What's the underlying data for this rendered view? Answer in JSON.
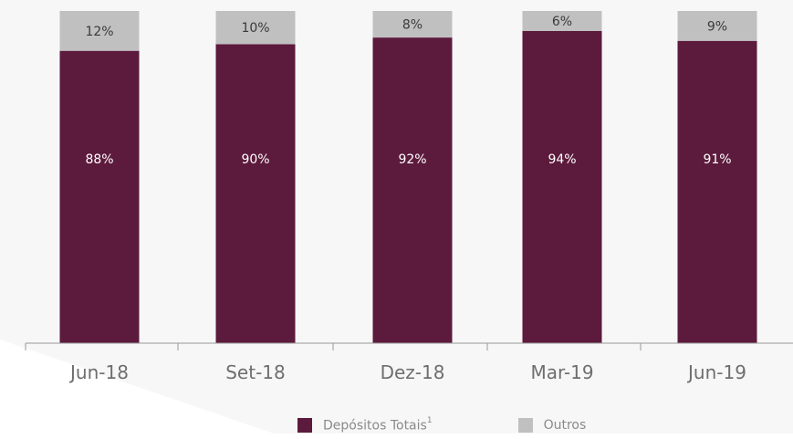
{
  "chart_data": {
    "type": "bar",
    "stacked": true,
    "categories": [
      "Jun-18",
      "Set-18",
      "Dez-18",
      "Mar-19",
      "Jun-19"
    ],
    "series": [
      {
        "name": "Depósitos Totais",
        "name_superscript": "1",
        "color": "#5c1a3c",
        "values": [
          88,
          90,
          92,
          94,
          91
        ],
        "labels": [
          "88%",
          "90%",
          "92%",
          "94%",
          "91%"
        ]
      },
      {
        "name": "Outros",
        "color": "#c0c0c0",
        "values": [
          12,
          10,
          8,
          6,
          9
        ],
        "labels": [
          "12%",
          "10%",
          "8%",
          "6%",
          "9%"
        ]
      }
    ],
    "ylim": [
      0,
      100
    ],
    "grid": false,
    "legend_position": "bottom"
  }
}
